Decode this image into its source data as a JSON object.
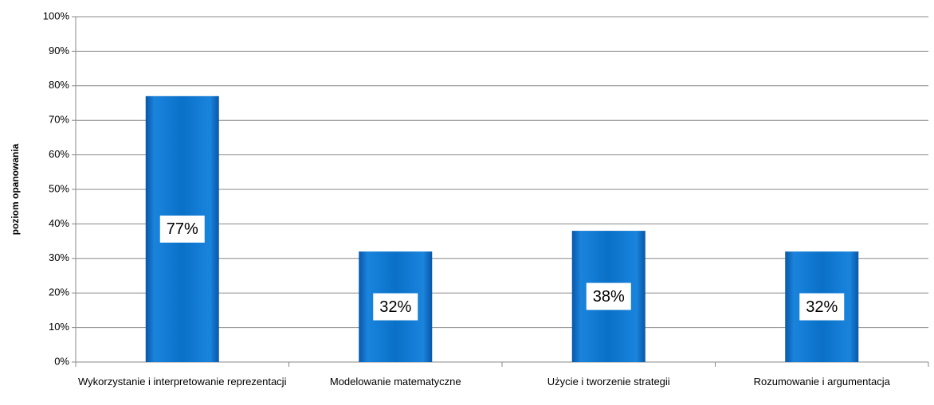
{
  "chart_data": {
    "type": "bar",
    "y_label": "poziom opanowania",
    "categories": [
      "Wykorzystanie i interpretowanie reprezentacji",
      "Modelowanie matematyczne",
      "Użycie i tworzenie strategii",
      "Rozumowanie i argumentacja"
    ],
    "values": [
      77,
      32,
      38,
      32
    ],
    "value_labels": [
      "77%",
      "32%",
      "38%",
      "32%"
    ],
    "color": "#0a70c8",
    "ylim": [
      0,
      100
    ],
    "yticks": [
      {
        "value": 0,
        "label": "0%"
      },
      {
        "value": 10,
        "label": "10%"
      },
      {
        "value": 20,
        "label": "20%"
      },
      {
        "value": 30,
        "label": "30%"
      },
      {
        "value": 40,
        "label": "40%"
      },
      {
        "value": 50,
        "label": "50%"
      },
      {
        "value": 60,
        "label": "60%"
      },
      {
        "value": 70,
        "label": "70%"
      },
      {
        "value": 80,
        "label": "80%"
      },
      {
        "value": 90,
        "label": "90%"
      },
      {
        "value": 100,
        "label": "100%"
      }
    ],
    "grid": true
  }
}
